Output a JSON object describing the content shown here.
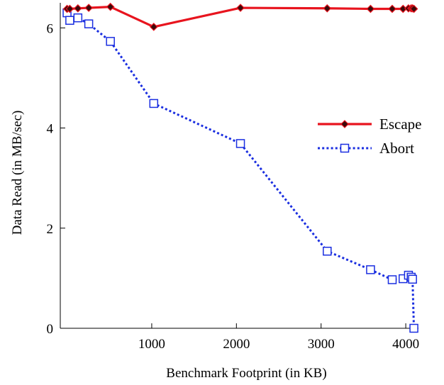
{
  "chart_data": {
    "type": "line",
    "title": "",
    "xlabel": "Benchmark Footprint (in KB)",
    "ylabel": "Data Read (in MB/sec)",
    "xlim": [
      -80,
      4150
    ],
    "ylim": [
      0,
      6.5
    ],
    "xticks": [
      1000,
      2000,
      3000,
      4000
    ],
    "yticks": [
      0,
      2,
      4,
      6
    ],
    "xtick_labels": [
      "1000",
      "2000",
      "3000",
      "4000"
    ],
    "ytick_labels": [
      "0",
      "2",
      "4",
      "6"
    ],
    "grid": false,
    "legend_position": "right-middle",
    "series": [
      {
        "name": "Escape",
        "color": "#e8141e",
        "marker": "diamond",
        "line_style": "solid",
        "x": [
          0,
          32,
          128,
          256,
          512,
          1024,
          2048,
          3072,
          3584,
          3840,
          3968,
          4032,
          4064,
          4080,
          4096
        ],
        "y": [
          6.38,
          6.38,
          6.39,
          6.4,
          6.42,
          6.02,
          6.4,
          6.39,
          6.38,
          6.38,
          6.38,
          6.39,
          6.39,
          6.39,
          6.38
        ]
      },
      {
        "name": "Abort",
        "color": "#1a2ee0",
        "marker": "square",
        "line_style": "dotted",
        "x": [
          0,
          32,
          128,
          256,
          512,
          1024,
          2048,
          3072,
          3584,
          3840,
          3968,
          4032,
          4064,
          4080,
          4096
        ],
        "y": [
          6.3,
          6.15,
          6.2,
          6.08,
          5.73,
          4.49,
          3.69,
          1.54,
          1.17,
          0.97,
          0.99,
          1.06,
          1.02,
          0.98,
          0.0
        ]
      }
    ]
  }
}
